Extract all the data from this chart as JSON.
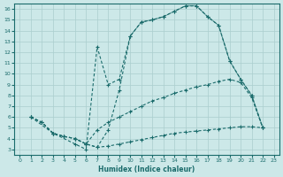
{
  "xlabel": "Humidex (Indice chaleur)",
  "xlim": [
    -0.5,
    23.5
  ],
  "ylim": [
    2.5,
    16.5
  ],
  "xticks": [
    0,
    1,
    2,
    3,
    4,
    5,
    6,
    7,
    8,
    9,
    10,
    11,
    12,
    13,
    14,
    15,
    16,
    17,
    18,
    19,
    20,
    21,
    22,
    23
  ],
  "yticks": [
    3,
    4,
    5,
    6,
    7,
    8,
    9,
    10,
    11,
    12,
    13,
    14,
    15,
    16
  ],
  "bg_color": "#cce8e8",
  "grid_color": "#aacece",
  "line_color": "#1a6b6b",
  "line1_x": [
    1,
    2,
    3,
    4,
    5,
    6,
    7,
    8,
    9,
    10,
    11,
    12,
    13,
    14,
    15,
    16,
    17,
    18,
    19,
    20,
    21,
    22
  ],
  "line1_y": [
    6.0,
    5.5,
    4.5,
    4.2,
    4.0,
    3.5,
    3.2,
    4.8,
    8.5,
    13.5,
    14.8,
    15.0,
    15.3,
    15.8,
    16.3,
    16.3,
    15.3,
    14.5,
    11.2,
    9.5,
    8.0,
    5.0
  ],
  "line2_x": [
    1,
    3,
    5,
    6,
    7,
    8,
    9,
    10,
    11,
    12,
    13,
    14,
    15,
    16,
    17,
    18,
    19,
    20,
    21,
    22
  ],
  "line2_y": [
    6.0,
    4.5,
    3.5,
    3.0,
    12.5,
    9.0,
    9.5,
    13.5,
    14.8,
    15.0,
    15.3,
    15.8,
    16.3,
    16.3,
    15.3,
    14.5,
    11.2,
    9.5,
    8.0,
    5.0
  ],
  "line3_x": [
    1,
    2,
    3,
    4,
    5,
    6,
    7,
    8,
    9,
    10,
    11,
    12,
    13,
    14,
    15,
    16,
    17,
    18,
    19,
    20,
    21,
    22
  ],
  "line3_y": [
    6.0,
    5.5,
    4.5,
    4.2,
    4.0,
    3.5,
    4.8,
    5.5,
    6.0,
    6.5,
    7.0,
    7.5,
    7.8,
    8.2,
    8.5,
    8.8,
    9.0,
    9.3,
    9.5,
    9.2,
    7.8,
    5.0
  ],
  "line4_x": [
    1,
    2,
    3,
    4,
    5,
    6,
    7,
    8,
    9,
    10,
    11,
    12,
    13,
    14,
    15,
    16,
    17,
    18,
    19,
    20,
    21,
    22
  ],
  "line4_y": [
    6.0,
    5.5,
    4.5,
    4.2,
    4.0,
    3.5,
    3.2,
    3.3,
    3.5,
    3.7,
    3.9,
    4.1,
    4.3,
    4.5,
    4.6,
    4.7,
    4.8,
    4.9,
    5.0,
    5.1,
    5.1,
    5.0
  ]
}
